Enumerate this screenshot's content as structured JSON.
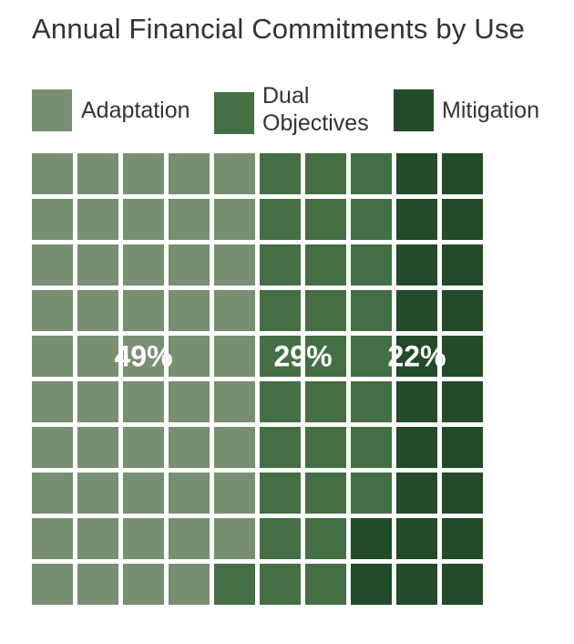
{
  "title": "Annual Financial Commitments by Use",
  "legend": [
    {
      "label": "Adaptation",
      "color": "#788f71"
    },
    {
      "label": "Dual\nObjectives",
      "color": "#446e43"
    },
    {
      "label": "Mitigation",
      "color": "#234b29"
    }
  ],
  "chart_data": {
    "type": "waffle",
    "title": "Annual Financial Commitments by Use",
    "grid": {
      "rows": 10,
      "columns": 10
    },
    "categories": [
      "Adaptation",
      "Dual Objectives",
      "Mitigation"
    ],
    "values": [
      49,
      29,
      22
    ],
    "unit": "%",
    "data_labels": [
      "49%",
      "29%",
      "22%"
    ],
    "colors": [
      "#788f71",
      "#446e43",
      "#234b29"
    ],
    "fill_order": "column-major, top-to-bottom, left-to-right",
    "legend_position": "top"
  }
}
